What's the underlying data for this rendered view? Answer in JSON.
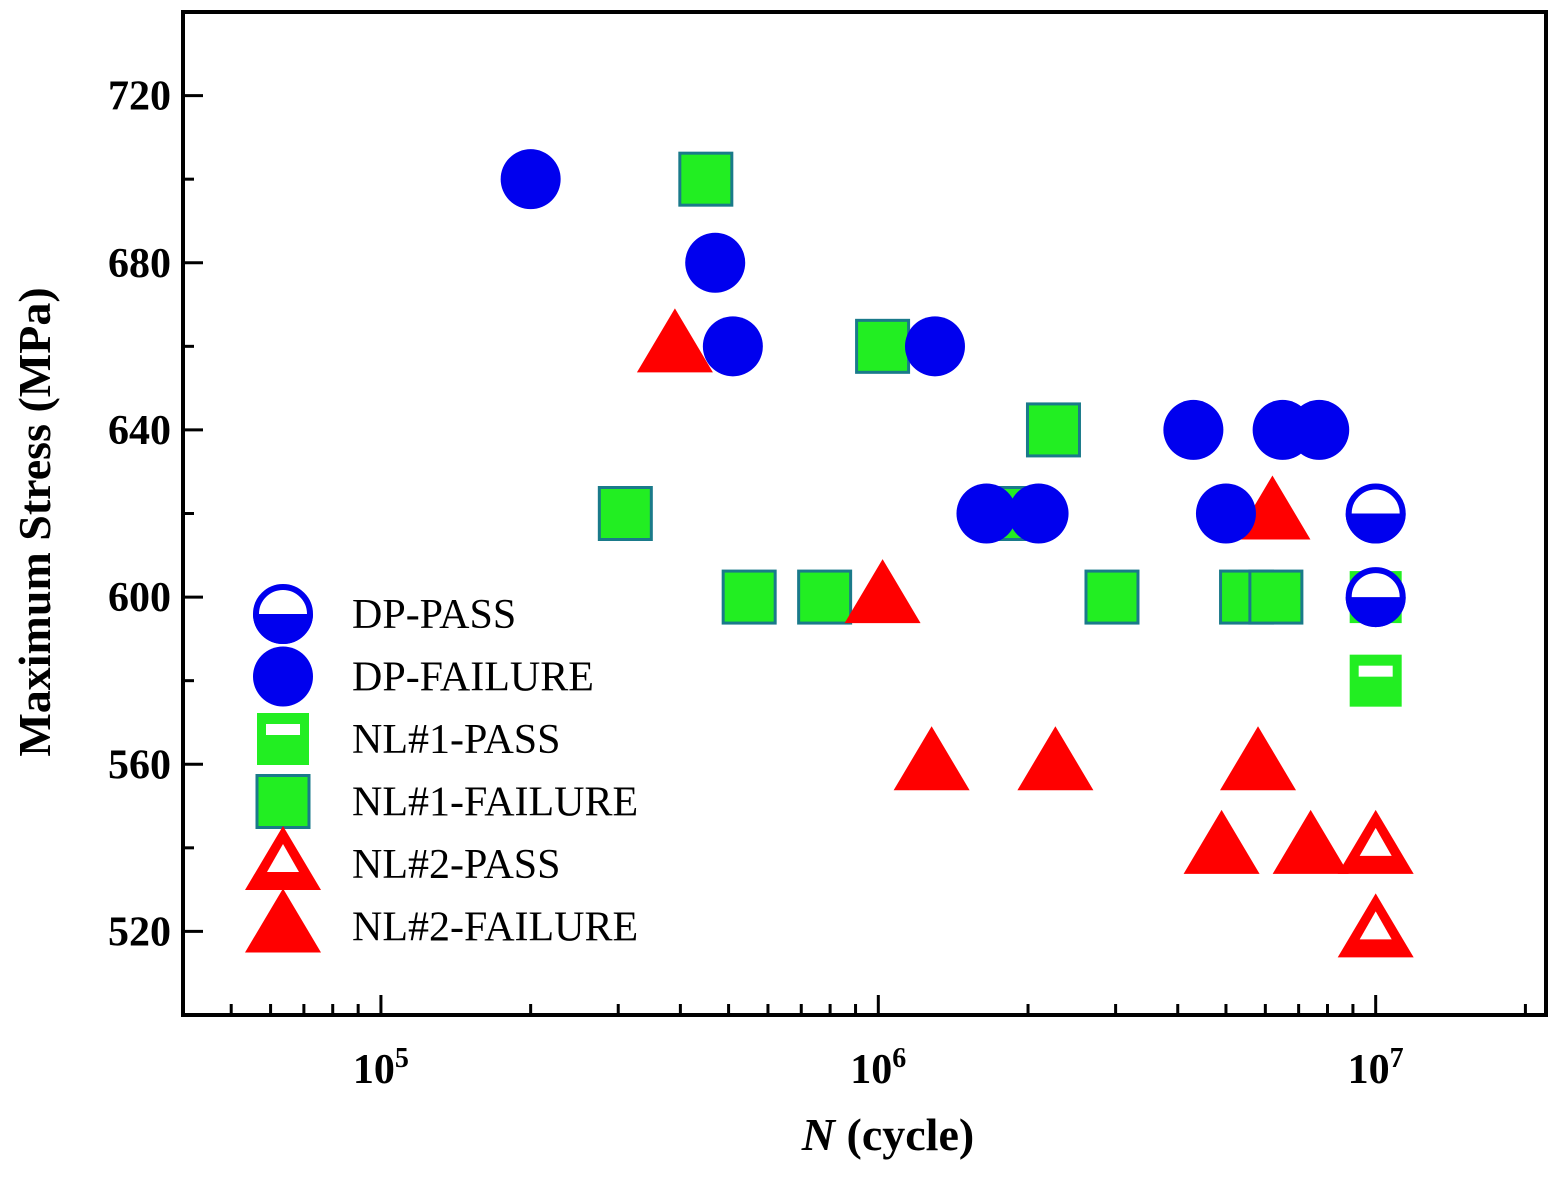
{
  "chart_data": {
    "type": "scatter",
    "title": "",
    "xlabel": {
      "italic": "N",
      "rest": " (cycle)"
    },
    "ylabel": "Maximum Stress (MPa)",
    "xscale": "log",
    "xlim": [
      40000,
      22000000
    ],
    "ylim": [
      500,
      740
    ],
    "x_ticks": [
      {
        "value": 100000,
        "base": "10",
        "exp": "5"
      },
      {
        "value": 1000000,
        "base": "10",
        "exp": "6"
      },
      {
        "value": 10000000,
        "base": "10",
        "exp": "7"
      }
    ],
    "y_ticks": [
      520,
      560,
      600,
      640,
      680,
      720
    ],
    "y_minor_ticks": [
      540,
      580,
      620,
      660,
      700
    ],
    "legend_position": "lower-left",
    "colors": {
      "dp": "#0000ee",
      "nl1_fill": "#22ee22",
      "nl1_edge": "#1a7a8a",
      "nl2": "#ff0000"
    },
    "series": [
      {
        "name": "DP-PASS",
        "marker": "circle-half",
        "color": "#0000ee",
        "points": [
          [
            10000000,
            620
          ],
          [
            10000000,
            600
          ]
        ]
      },
      {
        "name": "DP-FAILURE",
        "marker": "circle",
        "color": "#0000ee",
        "points": [
          [
            200000,
            700
          ],
          [
            470000,
            680
          ],
          [
            510000,
            660
          ],
          [
            1300000,
            660
          ],
          [
            1650000,
            620
          ],
          [
            2100000,
            620
          ],
          [
            4300000,
            640
          ],
          [
            5000000,
            620
          ],
          [
            6500000,
            640
          ],
          [
            7700000,
            640
          ]
        ]
      },
      {
        "name": "NL#1-PASS",
        "marker": "square-half",
        "color": "#22ee22",
        "points": [
          [
            10000000,
            600
          ],
          [
            10000000,
            580
          ]
        ]
      },
      {
        "name": "NL#1-FAILURE",
        "marker": "square",
        "color": "#22ee22",
        "points": [
          [
            450000,
            700
          ],
          [
            1020000,
            660
          ],
          [
            2250000,
            640
          ],
          [
            310000,
            620
          ],
          [
            1880000,
            620
          ],
          [
            550000,
            600
          ],
          [
            780000,
            600
          ],
          [
            2950000,
            600
          ],
          [
            5500000,
            600
          ],
          [
            6300000,
            600
          ]
        ]
      },
      {
        "name": "NL#2-PASS",
        "marker": "triangle-open",
        "color": "#ff0000",
        "points": [
          [
            10000000,
            540
          ],
          [
            10000000,
            520
          ]
        ]
      },
      {
        "name": "NL#2-FAILURE",
        "marker": "triangle",
        "color": "#ff0000",
        "points": [
          [
            390000,
            660
          ],
          [
            1020000,
            600
          ],
          [
            6200000,
            620
          ],
          [
            1280000,
            560
          ],
          [
            2270000,
            560
          ],
          [
            5800000,
            560
          ],
          [
            4900000,
            540
          ],
          [
            7400000,
            540
          ]
        ]
      }
    ]
  }
}
